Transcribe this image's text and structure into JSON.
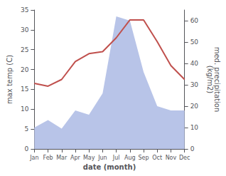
{
  "chart_data": {
    "type": "line",
    "categories": [
      "Jan",
      "Feb",
      "Mar",
      "Apr",
      "May",
      "Jun",
      "Jul",
      "Aug",
      "Sep",
      "Oct",
      "Nov",
      "Dec"
    ],
    "xlabel": "date (month)",
    "ylabel": "max temp (C)",
    "y2label": "med. precipitation\n(kg/m2)",
    "ylim": [
      0,
      35
    ],
    "yticks": [
      0,
      5,
      10,
      15,
      20,
      25,
      30,
      35
    ],
    "y2lim": [
      0,
      65
    ],
    "y2ticks": [
      0,
      10,
      20,
      30,
      40,
      50,
      60
    ],
    "grid": false,
    "series": [
      {
        "type": "area",
        "axis": "y2",
        "color": "#b8c4e8",
        "values": [
          10.0,
          13.5,
          9.5,
          18.0,
          16.0,
          26.0,
          62.0,
          60.0,
          36.0,
          20.0,
          18.0,
          18.0
        ]
      },
      {
        "type": "line",
        "color": "#c0504d",
        "values": [
          16.5,
          15.8,
          17.5,
          22.0,
          24.0,
          24.5,
          28.0,
          32.5,
          32.5,
          27.0,
          21.0,
          17.5
        ]
      }
    ]
  }
}
